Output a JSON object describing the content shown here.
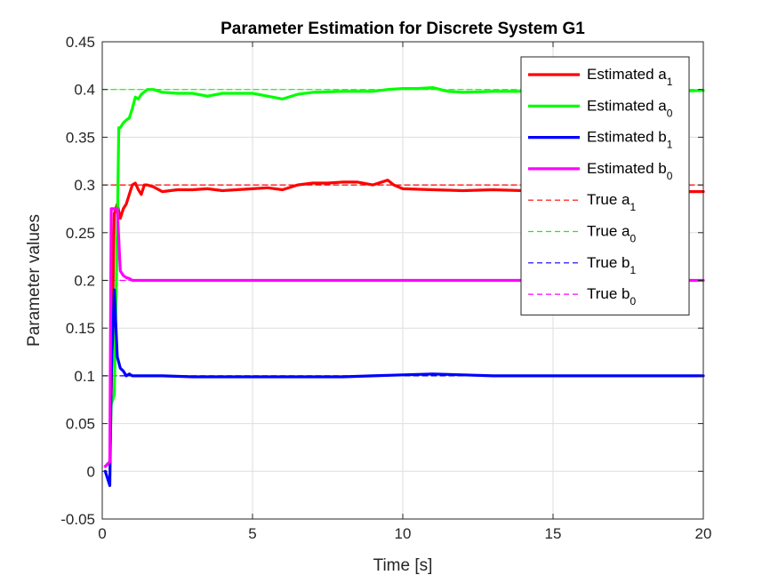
{
  "chart_data": {
    "type": "line",
    "title": "Parameter Estimation for Discrete System G1",
    "xlabel": "Time [s]",
    "ylabel": "Parameter values",
    "xlim": [
      0,
      20
    ],
    "ylim": [
      -0.05,
      0.45
    ],
    "xticks": [
      "0",
      "5",
      "10",
      "15",
      "20"
    ],
    "yticks": [
      "-0.05",
      "0",
      "0.05",
      "0.1",
      "0.15",
      "0.2",
      "0.25",
      "0.3",
      "0.35",
      "0.4",
      "0.45"
    ],
    "grid": true,
    "legend_position": "top-right",
    "series": [
      {
        "name": "Estimated a",
        "sub": "1",
        "style": "solid",
        "color": "#ff0000",
        "x": [
          0.1,
          0.25,
          0.3,
          0.4,
          0.5,
          0.6,
          0.7,
          0.8,
          0.9,
          1.0,
          1.1,
          1.2,
          1.3,
          1.4,
          1.5,
          1.7,
          2.0,
          2.5,
          3.0,
          3.5,
          4.0,
          5.0,
          5.5,
          6.0,
          6.5,
          7.0,
          7.5,
          8.0,
          8.5,
          9.0,
          9.5,
          9.7,
          10.0,
          11.0,
          12.0,
          13.0,
          14.0,
          15.0,
          16.0,
          17.0,
          18.0,
          19.0,
          20.0
        ],
        "y": [
          0.005,
          0.01,
          0.08,
          0.27,
          0.28,
          0.265,
          0.275,
          0.28,
          0.29,
          0.3,
          0.302,
          0.295,
          0.29,
          0.3,
          0.3,
          0.298,
          0.293,
          0.295,
          0.295,
          0.296,
          0.294,
          0.296,
          0.297,
          0.295,
          0.3,
          0.302,
          0.302,
          0.303,
          0.303,
          0.3,
          0.305,
          0.3,
          0.296,
          0.295,
          0.294,
          0.295,
          0.294,
          0.295,
          0.295,
          0.294,
          0.294,
          0.293,
          0.293
        ]
      },
      {
        "name": "Estimated a",
        "sub": "0",
        "style": "solid",
        "color": "#00ff00",
        "x": [
          0.1,
          0.25,
          0.3,
          0.4,
          0.5,
          0.55,
          0.6,
          0.7,
          0.8,
          0.9,
          1.0,
          1.1,
          1.2,
          1.3,
          1.5,
          1.7,
          2.0,
          2.5,
          3.0,
          3.5,
          4.0,
          5.0,
          5.5,
          6.0,
          6.5,
          7.0,
          8.0,
          9.0,
          9.5,
          10.0,
          10.5,
          11.0,
          11.5,
          12.0,
          13.0,
          14.0,
          15.0,
          16.0,
          17.0,
          18.0,
          19.0,
          20.0
        ],
        "y": [
          0.005,
          0.01,
          0.07,
          0.08,
          0.25,
          0.36,
          0.36,
          0.365,
          0.368,
          0.37,
          0.38,
          0.392,
          0.39,
          0.395,
          0.4,
          0.4,
          0.397,
          0.396,
          0.396,
          0.393,
          0.396,
          0.396,
          0.393,
          0.39,
          0.395,
          0.397,
          0.398,
          0.398,
          0.4,
          0.401,
          0.401,
          0.402,
          0.398,
          0.397,
          0.398,
          0.398,
          0.397,
          0.398,
          0.397,
          0.398,
          0.398,
          0.399
        ]
      },
      {
        "name": "Estimated b",
        "sub": "1",
        "style": "solid",
        "color": "#0000ff",
        "x": [
          0.1,
          0.25,
          0.3,
          0.4,
          0.5,
          0.6,
          0.7,
          0.8,
          0.9,
          1.0,
          1.5,
          2.0,
          3.0,
          4.0,
          5.0,
          6.0,
          7.0,
          8.0,
          9.0,
          10.0,
          11.0,
          12.0,
          13.0,
          14.0,
          15.0,
          16.0,
          17.0,
          18.0,
          19.0,
          20.0
        ],
        "y": [
          0.0,
          -0.015,
          0.1,
          0.19,
          0.12,
          0.108,
          0.105,
          0.1,
          0.102,
          0.1,
          0.1,
          0.1,
          0.099,
          0.099,
          0.099,
          0.099,
          0.099,
          0.099,
          0.1,
          0.101,
          0.102,
          0.101,
          0.1,
          0.1,
          0.1,
          0.1,
          0.1,
          0.1,
          0.1,
          0.1
        ]
      },
      {
        "name": "Estimated b",
        "sub": "0",
        "style": "solid",
        "color": "#ff00ff",
        "x": [
          0.1,
          0.25,
          0.3,
          0.4,
          0.5,
          0.6,
          0.7,
          0.8,
          0.9,
          1.0,
          1.5,
          2.0,
          3.0,
          4.0,
          5.0,
          6.0,
          7.0,
          8.0,
          9.0,
          10.0,
          11.0,
          12.0,
          13.0,
          14.0,
          15.0,
          16.0,
          17.0,
          18.0,
          19.0,
          20.0
        ],
        "y": [
          0.005,
          0.01,
          0.275,
          0.275,
          0.275,
          0.21,
          0.205,
          0.203,
          0.202,
          0.2,
          0.2,
          0.2,
          0.2,
          0.2,
          0.2,
          0.2,
          0.2,
          0.2,
          0.2,
          0.2,
          0.2,
          0.2,
          0.2,
          0.2,
          0.2,
          0.2,
          0.2,
          0.2,
          0.2,
          0.2
        ]
      },
      {
        "name": "True a",
        "sub": "1",
        "style": "dashed",
        "color": "#ff0000",
        "x": [
          0,
          20
        ],
        "y": [
          0.3,
          0.3
        ]
      },
      {
        "name": "True a",
        "sub": "0",
        "style": "dashed",
        "color": "#00ff00",
        "x": [
          0,
          20
        ],
        "y": [
          0.4,
          0.4
        ]
      },
      {
        "name": "True b",
        "sub": "1",
        "style": "dashed",
        "color": "#0000ff",
        "x": [
          0,
          20
        ],
        "y": [
          0.1,
          0.1
        ]
      },
      {
        "name": "True b",
        "sub": "0",
        "style": "dashed",
        "color": "#ff00ff",
        "x": [
          0,
          20
        ],
        "y": [
          0.2,
          0.2
        ]
      }
    ]
  }
}
